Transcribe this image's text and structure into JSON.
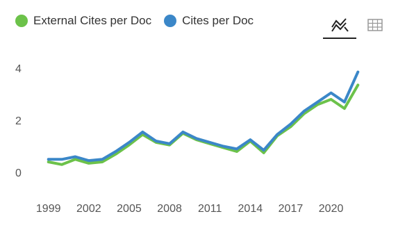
{
  "legend": {
    "items": [
      {
        "label": "External Cites per Doc",
        "color": "#6cc24a"
      },
      {
        "label": "Cites per Doc",
        "color": "#3b87c8"
      }
    ]
  },
  "toolbar": {
    "line_view_icon": "line-chart-icon",
    "table_view_icon": "table-icon",
    "active": "line"
  },
  "chart_data": {
    "type": "line",
    "x": [
      1999,
      2000,
      2001,
      2002,
      2003,
      2004,
      2005,
      2006,
      2007,
      2008,
      2009,
      2010,
      2011,
      2012,
      2013,
      2014,
      2015,
      2016,
      2017,
      2018,
      2019,
      2020,
      2021,
      2022
    ],
    "series": [
      {
        "name": "External Cites per Doc",
        "color": "#6cc24a",
        "values": [
          0.4,
          0.3,
          0.5,
          0.35,
          0.4,
          0.7,
          1.05,
          1.45,
          1.15,
          1.05,
          1.5,
          1.25,
          1.1,
          0.95,
          0.8,
          1.2,
          0.75,
          1.4,
          1.75,
          2.25,
          2.6,
          2.8,
          2.45,
          3.35
        ]
      },
      {
        "name": "Cites per Doc",
        "color": "#3b87c8",
        "values": [
          0.5,
          0.5,
          0.6,
          0.45,
          0.5,
          0.8,
          1.15,
          1.55,
          1.2,
          1.1,
          1.55,
          1.3,
          1.15,
          1.0,
          0.9,
          1.25,
          0.85,
          1.45,
          1.85,
          2.35,
          2.7,
          3.05,
          2.7,
          3.85
        ]
      }
    ],
    "xticks": [
      "1999",
      "2002",
      "2005",
      "2008",
      "2011",
      "2014",
      "2017",
      "2020"
    ],
    "yticks": [
      "0",
      "2",
      "4"
    ],
    "xlim": [
      1998.5,
      2022.5
    ],
    "ylim": [
      0,
      4
    ],
    "grid": false,
    "legend": "top-left"
  }
}
